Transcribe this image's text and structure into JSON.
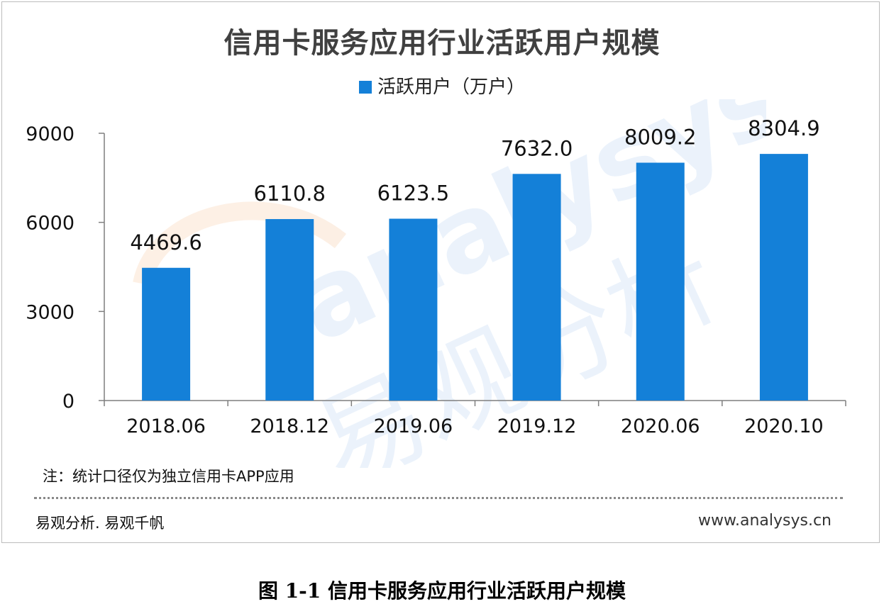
{
  "chart_data": {
    "type": "bar",
    "title": "信用卡服务应用行业活跃用户规模",
    "categories": [
      "2018.06",
      "2018.12",
      "2019.06",
      "2019.12",
      "2020.06",
      "2020.10"
    ],
    "series": [
      {
        "name": "活跃用户（万户）",
        "values": [
          4469.6,
          6110.8,
          6123.5,
          7632.0,
          8009.2,
          8304.9
        ]
      }
    ],
    "data_labels": [
      "4469.6",
      "6110.8",
      "6123.5",
      "7632.0",
      "8009.2",
      "8304.9"
    ],
    "y_ticks": [
      0,
      3000,
      6000,
      9000
    ],
    "ylim": [
      0,
      9000
    ],
    "grid": false,
    "legend_position": "top-center",
    "bar_color": "#1480d8"
  },
  "note": "注：统计口径仅为独立信用卡APP应用",
  "source_left": "易观分析. 易观千帆",
  "source_right": "www.analysys.cn",
  "figure_caption": "图 1-1 信用卡服务应用行业活跃用户规模",
  "watermark": {
    "latin": "analysys",
    "cjk": "易观分析",
    "color_cjk": "#cfe2f6",
    "color_logo": "#fbe3cf"
  }
}
